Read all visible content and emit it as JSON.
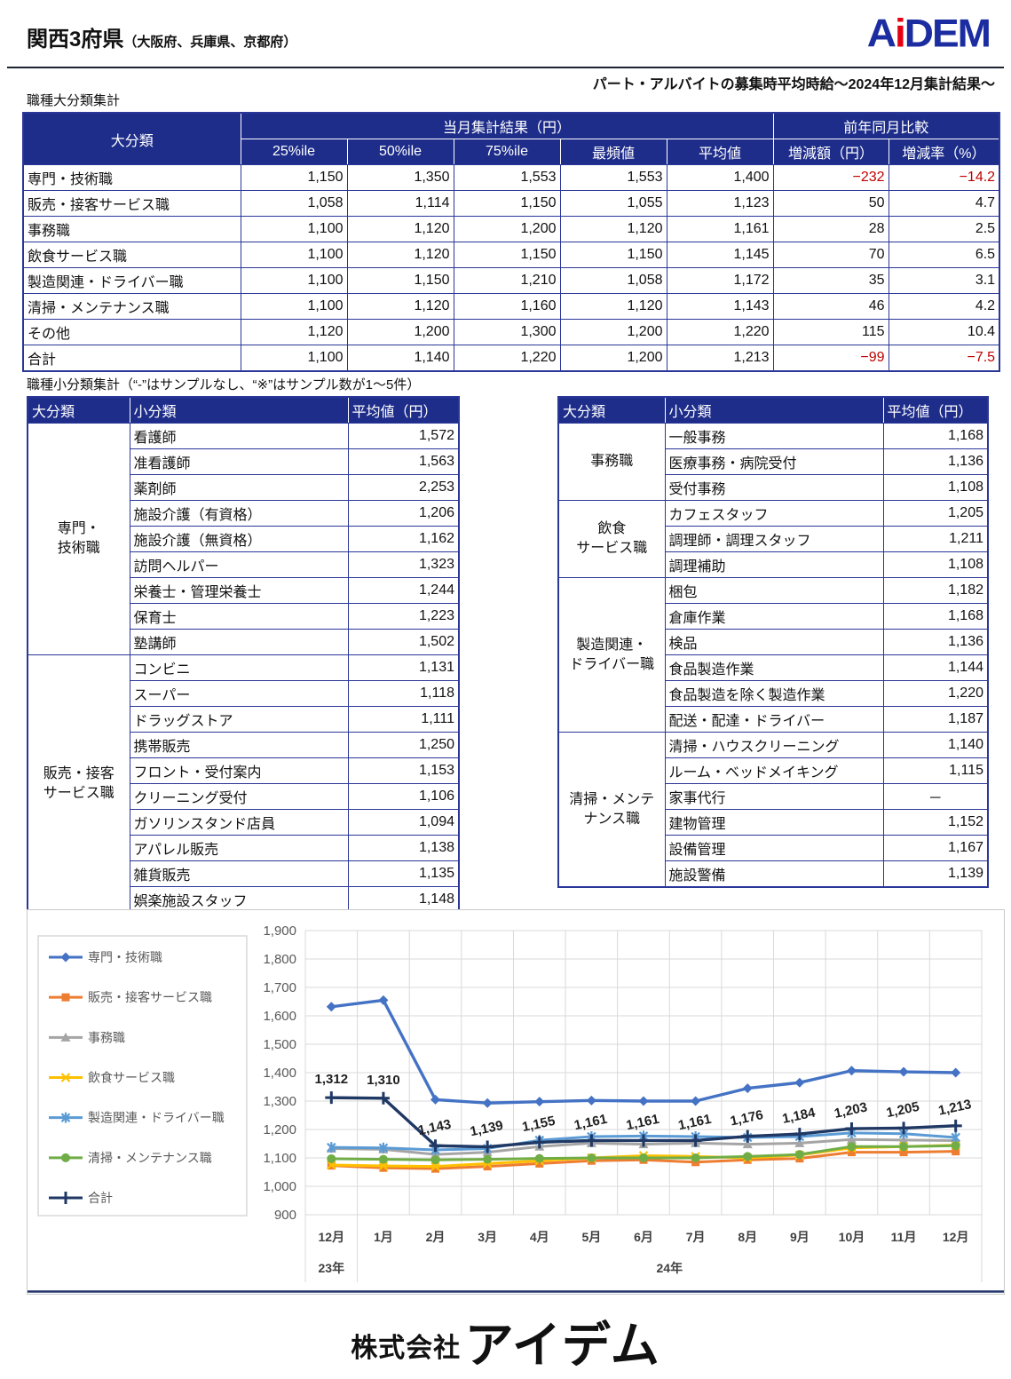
{
  "header": {
    "title": "関西3府県",
    "title_note": "（大阪府、兵庫県、京都府）",
    "logo": {
      "part_a": "A",
      "part_i": "i",
      "part_dem": "DEM"
    },
    "subtitle": "パート・アルバイトの募集時平均時給～2024年12月集計結果～"
  },
  "colors": {
    "table_header_navy": "#1e2d8a",
    "table_border_navy": "#2a3698",
    "negative_red": "#c00000",
    "grid_gray": "#d9d9d9",
    "axis_text": "#595959",
    "logo_blue": "#1b2da0",
    "logo_red": "#e60012"
  },
  "major_table": {
    "caption": "職種大分類集計",
    "col_category": "大分類",
    "col_group_current": "当月集計結果（円）",
    "col_group_yoy": "前年同月比較",
    "subheaders": [
      "25%ile",
      "50%ile",
      "75%ile",
      "最頻値",
      "平均値"
    ],
    "yoy_headers": [
      "増減額（円）",
      "増減率（%）"
    ],
    "rows": [
      {
        "label": "専門・技術職",
        "p25": "1,150",
        "p50": "1,350",
        "p75": "1,553",
        "mode": "1,553",
        "avg": "1,400",
        "diff": "−232",
        "rate": "−14.2",
        "negative": true
      },
      {
        "label": "販売・接客サービス職",
        "p25": "1,058",
        "p50": "1,114",
        "p75": "1,150",
        "mode": "1,055",
        "avg": "1,123",
        "diff": "50",
        "rate": "4.7",
        "negative": false
      },
      {
        "label": "事務職",
        "p25": "1,100",
        "p50": "1,120",
        "p75": "1,200",
        "mode": "1,120",
        "avg": "1,161",
        "diff": "28",
        "rate": "2.5",
        "negative": false
      },
      {
        "label": "飲食サービス職",
        "p25": "1,100",
        "p50": "1,120",
        "p75": "1,150",
        "mode": "1,150",
        "avg": "1,145",
        "diff": "70",
        "rate": "6.5",
        "negative": false
      },
      {
        "label": "製造関連・ドライバー職",
        "p25": "1,100",
        "p50": "1,150",
        "p75": "1,210",
        "mode": "1,058",
        "avg": "1,172",
        "diff": "35",
        "rate": "3.1",
        "negative": false
      },
      {
        "label": "清掃・メンテナンス職",
        "p25": "1,100",
        "p50": "1,120",
        "p75": "1,160",
        "mode": "1,120",
        "avg": "1,143",
        "diff": "46",
        "rate": "4.2",
        "negative": false
      },
      {
        "label": "その他",
        "p25": "1,120",
        "p50": "1,200",
        "p75": "1,300",
        "mode": "1,200",
        "avg": "1,220",
        "diff": "115",
        "rate": "10.4",
        "negative": false
      },
      {
        "label": "合計",
        "p25": "1,100",
        "p50": "1,140",
        "p75": "1,220",
        "mode": "1,200",
        "avg": "1,213",
        "diff": "−99",
        "rate": "−7.5",
        "negative": true
      }
    ]
  },
  "minor_tables": {
    "caption": "職種小分類集計（“-”はサンプルなし、“※”はサンプル数が1～5件）",
    "headers": [
      "大分類",
      "小分類",
      "平均値（円）"
    ],
    "left_groups": [
      {
        "category_lines": [
          "専門・",
          "技術職"
        ],
        "rows": [
          [
            "看護師",
            "1,572"
          ],
          [
            "准看護師",
            "1,563"
          ],
          [
            "薬剤師",
            "2,253"
          ],
          [
            "施設介護（有資格）",
            "1,206"
          ],
          [
            "施設介護（無資格）",
            "1,162"
          ],
          [
            "訪問ヘルパー",
            "1,323"
          ],
          [
            "栄養士・管理栄養士",
            "1,244"
          ],
          [
            "保育士",
            "1,223"
          ],
          [
            "塾講師",
            "1,502"
          ]
        ]
      },
      {
        "category_lines": [
          "販売・接客",
          "サービス職"
        ],
        "rows": [
          [
            "コンビニ",
            "1,131"
          ],
          [
            "スーパー",
            "1,118"
          ],
          [
            "ドラッグストア",
            "1,111"
          ],
          [
            "携帯販売",
            "1,250"
          ],
          [
            "フロント・受付案内",
            "1,153"
          ],
          [
            "クリーニング受付",
            "1,106"
          ],
          [
            "ガソリンスタンド店員",
            "1,094"
          ],
          [
            "アパレル販売",
            "1,138"
          ],
          [
            "雑貨販売",
            "1,135"
          ],
          [
            "娯楽施設スタッフ",
            "1,148"
          ]
        ]
      }
    ],
    "right_groups": [
      {
        "category_lines": [
          "事務職"
        ],
        "rows": [
          [
            "一般事務",
            "1,168"
          ],
          [
            "医療事務・病院受付",
            "1,136"
          ],
          [
            "受付事務",
            "1,108"
          ]
        ]
      },
      {
        "category_lines": [
          "飲食",
          "サービス職"
        ],
        "rows": [
          [
            "カフェスタッフ",
            "1,205"
          ],
          [
            "調理師・調理スタッフ",
            "1,211"
          ],
          [
            "調理補助",
            "1,108"
          ]
        ]
      },
      {
        "category_lines": [
          "製造関連・",
          "ドライバー職"
        ],
        "rows": [
          [
            "梱包",
            "1,182"
          ],
          [
            "倉庫作業",
            "1,168"
          ],
          [
            "検品",
            "1,136"
          ],
          [
            "食品製造作業",
            "1,144"
          ],
          [
            "食品製造を除く製造作業",
            "1,220"
          ],
          [
            "配送・配達・ドライバー",
            "1,187"
          ]
        ]
      },
      {
        "category_lines": [
          "清掃・メンテ",
          "ナンス職"
        ],
        "rows": [
          [
            "清掃・ハウスクリーニング",
            "1,140"
          ],
          [
            "ルーム・ベッドメイキング",
            "1,115"
          ],
          [
            "家事代行",
            "－"
          ],
          [
            "建物管理",
            "1,152"
          ],
          [
            "設備管理",
            "1,167"
          ],
          [
            "施設警備",
            "1,139"
          ]
        ]
      }
    ]
  },
  "chart_data": {
    "type": "line",
    "x": [
      "12月",
      "1月",
      "2月",
      "3月",
      "4月",
      "5月",
      "6月",
      "7月",
      "8月",
      "9月",
      "10月",
      "11月",
      "12月"
    ],
    "year_groups": [
      {
        "label": "23年",
        "span": 1
      },
      {
        "label": "24年",
        "span": 12
      }
    ],
    "ylim": [
      900,
      1900
    ],
    "ytick_step": 100,
    "yticks": [
      "1,900",
      "1,800",
      "1,700",
      "1,600",
      "1,500",
      "1,400",
      "1,300",
      "1,200",
      "1,100",
      "1,000",
      "900"
    ],
    "grid": true,
    "legend_position": "left",
    "series": [
      {
        "name": "専門・技術職",
        "color": "#4472c4",
        "marker": "diamond",
        "values": [
          1632,
          1655,
          1305,
          1293,
          1298,
          1302,
          1300,
          1300,
          1345,
          1365,
          1407,
          1403,
          1400
        ]
      },
      {
        "name": "販売・接客サービス職",
        "color": "#ed7d31",
        "marker": "square",
        "values": [
          1073,
          1065,
          1062,
          1070,
          1080,
          1090,
          1093,
          1085,
          1093,
          1098,
          1120,
          1120,
          1123
        ]
      },
      {
        "name": "事務職",
        "color": "#a5a5a5",
        "marker": "triangle",
        "values": [
          1133,
          1130,
          1112,
          1120,
          1140,
          1152,
          1148,
          1152,
          1148,
          1152,
          1165,
          1163,
          1161
        ]
      },
      {
        "name": "飲食サービス職",
        "color": "#ffc000",
        "marker": "x",
        "values": [
          1075,
          1072,
          1070,
          1080,
          1090,
          1100,
          1108,
          1105,
          1100,
          1110,
          1135,
          1140,
          1145
        ]
      },
      {
        "name": "製造関連・ドライバー職",
        "color": "#5b9bd5",
        "marker": "asterisk",
        "values": [
          1137,
          1135,
          1128,
          1133,
          1162,
          1175,
          1177,
          1175,
          1172,
          1175,
          1188,
          1185,
          1172
        ]
      },
      {
        "name": "清掃・メンテナンス職",
        "color": "#70ad47",
        "marker": "circle",
        "values": [
          1097,
          1095,
          1093,
          1095,
          1098,
          1100,
          1100,
          1100,
          1105,
          1112,
          1140,
          1140,
          1143
        ]
      },
      {
        "name": "合計",
        "color": "#1f3864",
        "marker": "plus",
        "values": [
          1312,
          1310,
          1143,
          1139,
          1155,
          1161,
          1161,
          1161,
          1176,
          1184,
          1203,
          1205,
          1213
        ],
        "data_labels": [
          "1,312",
          "1,310",
          "1,143",
          "1,139",
          "1,155",
          "1,161",
          "1,161",
          "1,161",
          "1,176",
          "1,184",
          "1,203",
          "1,205",
          "1,213"
        ]
      }
    ]
  },
  "footer": {
    "company_prefix": "株式会社",
    "company_name": "アイデム"
  }
}
